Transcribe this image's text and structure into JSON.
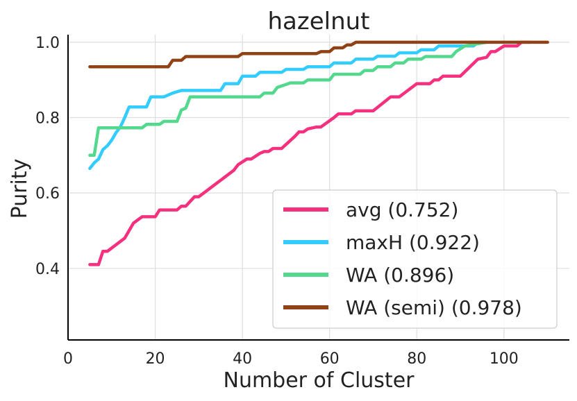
{
  "chart_data": {
    "type": "line",
    "title": "hazelnut",
    "xlabel": "Number of Cluster",
    "ylabel": "Purity",
    "xlim": [
      0,
      115
    ],
    "ylim": [
      0.21,
      1.02
    ],
    "xticks": [
      0,
      20,
      40,
      60,
      80,
      100
    ],
    "yticks": [
      0.4,
      0.6,
      0.8,
      1.0
    ],
    "ytick_labels": [
      "0.4",
      "0.6",
      "0.8",
      "1.0"
    ],
    "grid": true,
    "legend_position": "lower-right",
    "series": [
      {
        "name": "avg (0.752)",
        "color": "#f5317f",
        "points": [
          [
            5,
            0.41
          ],
          [
            7,
            0.41
          ],
          [
            8,
            0.445
          ],
          [
            9,
            0.445
          ],
          [
            13,
            0.48
          ],
          [
            15,
            0.52
          ],
          [
            17,
            0.537
          ],
          [
            20,
            0.537
          ],
          [
            21,
            0.555
          ],
          [
            25,
            0.555
          ],
          [
            26,
            0.565
          ],
          [
            27,
            0.565
          ],
          [
            29,
            0.59
          ],
          [
            30,
            0.59
          ],
          [
            38,
            0.66
          ],
          [
            39,
            0.675
          ],
          [
            41,
            0.69
          ],
          [
            42,
            0.69
          ],
          [
            44,
            0.705
          ],
          [
            45,
            0.71
          ],
          [
            46,
            0.71
          ],
          [
            47,
            0.718
          ],
          [
            49,
            0.718
          ],
          [
            52,
            0.75
          ],
          [
            53,
            0.762
          ],
          [
            54,
            0.762
          ],
          [
            55,
            0.77
          ],
          [
            57,
            0.775
          ],
          [
            58,
            0.775
          ],
          [
            61,
            0.8
          ],
          [
            62,
            0.81
          ],
          [
            65,
            0.81
          ],
          [
            66,
            0.818
          ],
          [
            70,
            0.818
          ],
          [
            74,
            0.855
          ],
          [
            76,
            0.855
          ],
          [
            80,
            0.89
          ],
          [
            83,
            0.89
          ],
          [
            84,
            0.9
          ],
          [
            85,
            0.9
          ],
          [
            86,
            0.91
          ],
          [
            90,
            0.91
          ],
          [
            94,
            0.955
          ],
          [
            96,
            0.96
          ],
          [
            97,
            0.975
          ],
          [
            98,
            0.975
          ],
          [
            100,
            0.99
          ],
          [
            103,
            0.99
          ],
          [
            104,
            1.0
          ],
          [
            106,
            1.0
          ]
        ]
      },
      {
        "name": "maxH (0.922)",
        "color": "#33ccff",
        "points": [
          [
            5,
            0.665
          ],
          [
            6,
            0.68
          ],
          [
            7,
            0.69
          ],
          [
            8,
            0.715
          ],
          [
            9,
            0.725
          ],
          [
            10,
            0.74
          ],
          [
            11,
            0.76
          ],
          [
            12,
            0.775
          ],
          [
            13,
            0.8
          ],
          [
            14,
            0.828
          ],
          [
            18,
            0.828
          ],
          [
            19,
            0.855
          ],
          [
            22,
            0.855
          ],
          [
            24,
            0.865
          ],
          [
            26,
            0.872
          ],
          [
            35,
            0.872
          ],
          [
            36,
            0.89
          ],
          [
            39,
            0.89
          ],
          [
            40,
            0.91
          ],
          [
            43,
            0.91
          ],
          [
            44,
            0.92
          ],
          [
            49,
            0.92
          ],
          [
            50,
            0.928
          ],
          [
            54,
            0.928
          ],
          [
            55,
            0.935
          ],
          [
            60,
            0.935
          ],
          [
            61,
            0.945
          ],
          [
            65,
            0.945
          ],
          [
            66,
            0.955
          ],
          [
            70,
            0.955
          ],
          [
            71,
            0.963
          ],
          [
            75,
            0.963
          ],
          [
            76,
            0.972
          ],
          [
            80,
            0.972
          ],
          [
            81,
            0.98
          ],
          [
            84,
            0.98
          ],
          [
            85,
            0.99
          ],
          [
            93,
            0.99
          ],
          [
            94,
            1.0
          ],
          [
            96,
            1.0
          ]
        ]
      },
      {
        "name": "WA (0.896)",
        "color": "#52d98e",
        "points": [
          [
            5,
            0.7
          ],
          [
            6,
            0.7
          ],
          [
            7,
            0.773
          ],
          [
            17,
            0.773
          ],
          [
            18,
            0.782
          ],
          [
            21,
            0.782
          ],
          [
            22,
            0.79
          ],
          [
            25,
            0.79
          ],
          [
            26,
            0.82
          ],
          [
            27,
            0.825
          ],
          [
            28,
            0.855
          ],
          [
            44,
            0.855
          ],
          [
            45,
            0.865
          ],
          [
            47,
            0.865
          ],
          [
            48,
            0.88
          ],
          [
            50,
            0.888
          ],
          [
            51,
            0.892
          ],
          [
            54,
            0.892
          ],
          [
            55,
            0.9
          ],
          [
            60,
            0.9
          ],
          [
            61,
            0.915
          ],
          [
            67,
            0.915
          ],
          [
            68,
            0.925
          ],
          [
            70,
            0.925
          ],
          [
            71,
            0.935
          ],
          [
            74,
            0.935
          ],
          [
            75,
            0.945
          ],
          [
            77,
            0.945
          ],
          [
            78,
            0.955
          ],
          [
            81,
            0.955
          ],
          [
            82,
            0.962
          ],
          [
            88,
            0.962
          ],
          [
            89,
            0.975
          ],
          [
            91,
            0.99
          ],
          [
            96,
            1.0
          ]
        ]
      },
      {
        "name": "WA (semi) (0.978)",
        "color": "#8f4216",
        "points": [
          [
            5,
            0.935
          ],
          [
            23,
            0.935
          ],
          [
            24,
            0.952
          ],
          [
            26,
            0.952
          ],
          [
            27,
            0.962
          ],
          [
            39,
            0.962
          ],
          [
            40,
            0.97
          ],
          [
            57,
            0.97
          ],
          [
            58,
            0.975
          ],
          [
            60,
            0.975
          ],
          [
            61,
            0.985
          ],
          [
            63,
            0.985
          ],
          [
            64,
            0.993
          ],
          [
            65,
            0.993
          ],
          [
            66,
            1.0
          ],
          [
            110,
            1.0
          ]
        ]
      }
    ]
  }
}
